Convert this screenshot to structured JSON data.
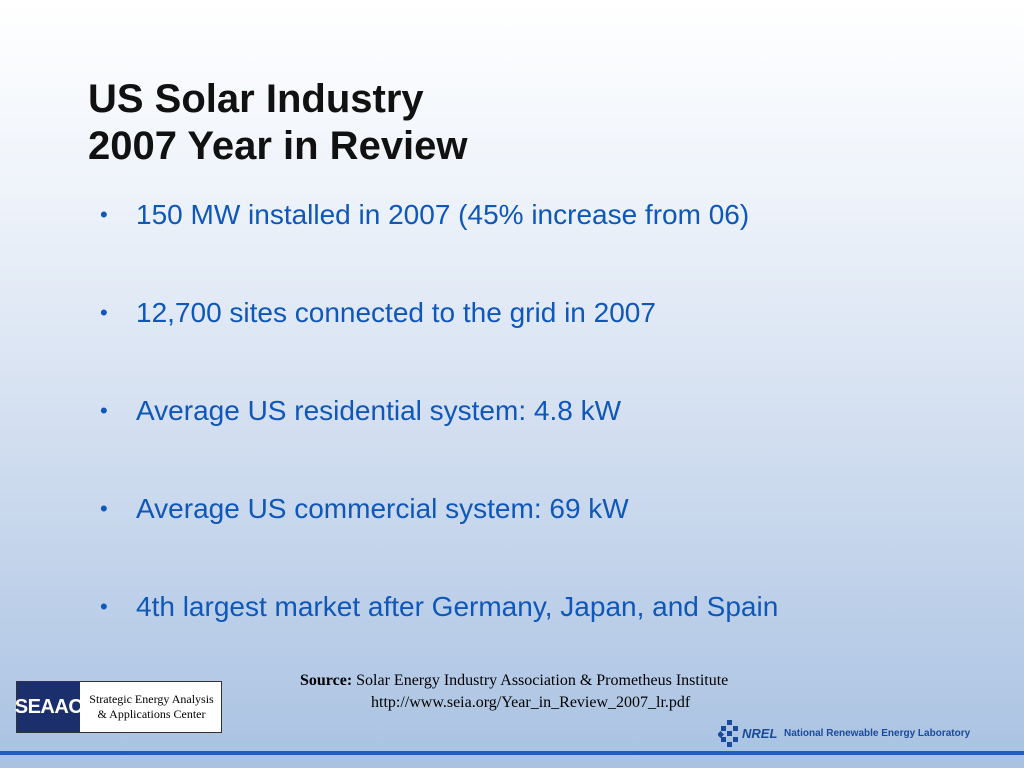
{
  "slide": {
    "title_line1": "US Solar Industry",
    "title_line2": "2007 Year in Review",
    "bullets": [
      "150 MW installed in 2007 (45% increase from 06)",
      "12,700 sites connected to the grid in 2007",
      "Average US residential system: 4.8 kW",
      "Average US commercial system: 69 kW",
      "4th largest market after Germany, Japan, and Spain"
    ],
    "bullet_glyph": "•"
  },
  "source": {
    "label": "Source:",
    "text": "Solar Energy Industry Association & Prometheus Institute",
    "url": "http://www.seia.org/Year_in_Review_2007_lr.pdf"
  },
  "logos": {
    "seaac": {
      "mark": "SEAAC",
      "line1": "Strategic Energy Analysis",
      "line2": "& Applications Center"
    },
    "nrel": {
      "mark": "NREL",
      "name": "National Renewable Energy Laboratory"
    }
  },
  "colors": {
    "title": "#111111",
    "bullet_text": "#0f57b8",
    "footer_rule": "#1f5fc0"
  }
}
